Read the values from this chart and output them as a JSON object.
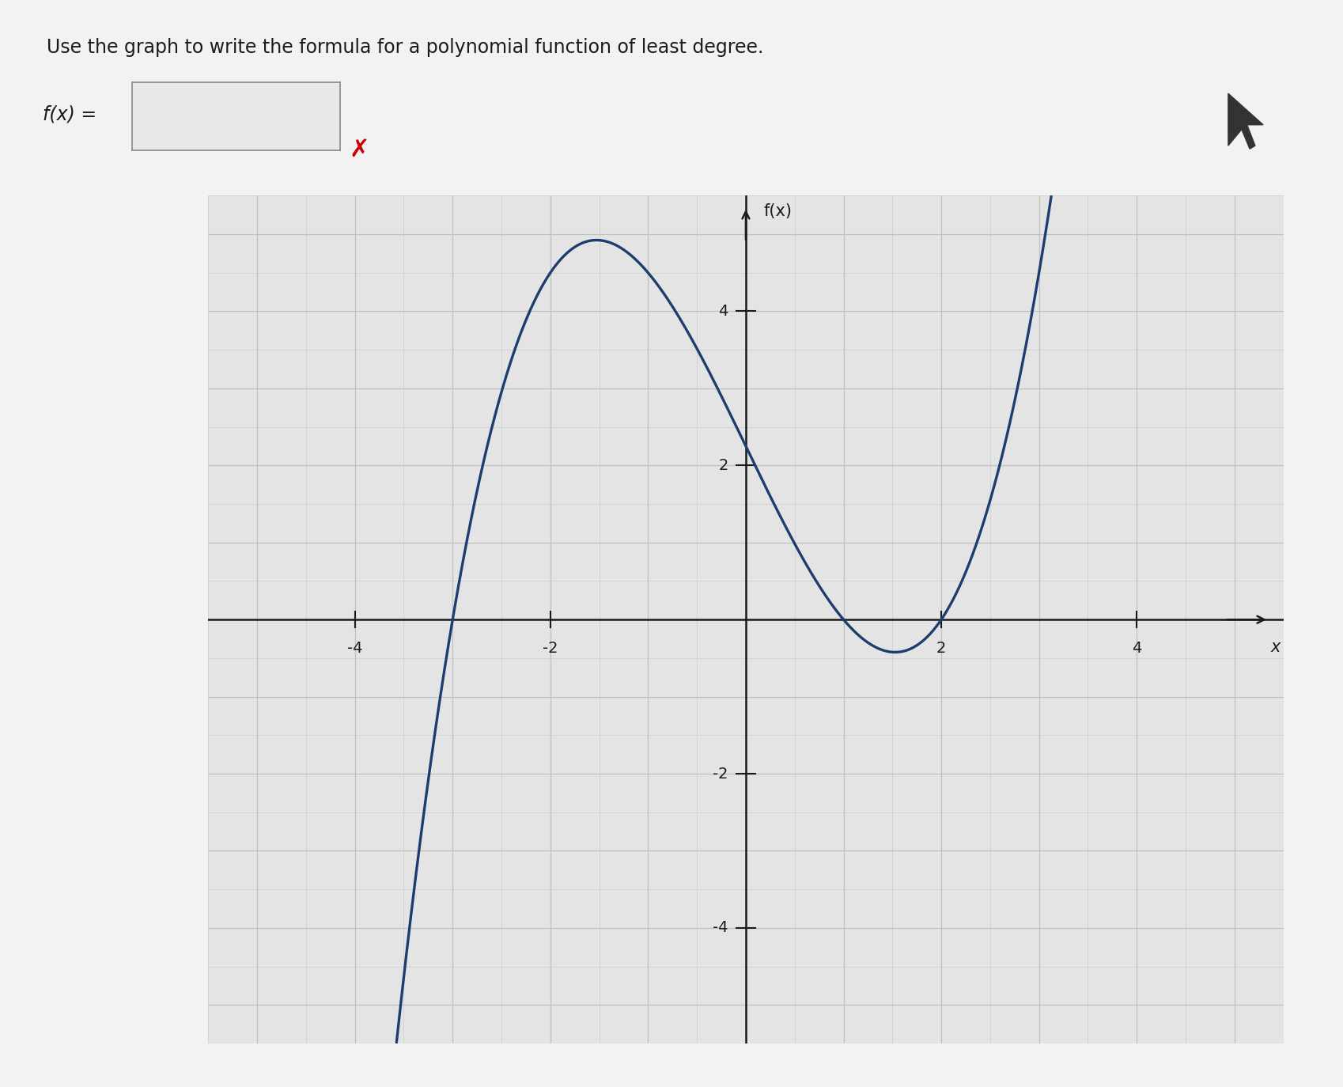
{
  "title": "Use the graph to write the formula for a polynomial function of least degree.",
  "fx_label": "f(x)",
  "x_label": "x",
  "fx_eq_text": "f(x) =",
  "background_color": "#f2f2f2",
  "plot_bg_color": "#e4e4e4",
  "curve_color": "#1c3d6e",
  "curve_linewidth": 2.4,
  "xmin": -5.5,
  "xmax": 5.5,
  "ymin": -5.5,
  "ymax": 5.5,
  "x_ticks": [
    -4,
    -2,
    2,
    4
  ],
  "y_ticks": [
    -4,
    -2,
    2,
    4
  ],
  "grid_color_minor": "#d0d0d0",
  "grid_color_major": "#c0c0c0",
  "axis_color": "#1a1a1a",
  "title_fontsize": 17,
  "label_fontsize": 15,
  "tick_fontsize": 14,
  "roots": [
    -3,
    1,
    2
  ],
  "leading_coeff": 0.375,
  "x_plot_start": -3.7,
  "x_plot_end": 3.5
}
